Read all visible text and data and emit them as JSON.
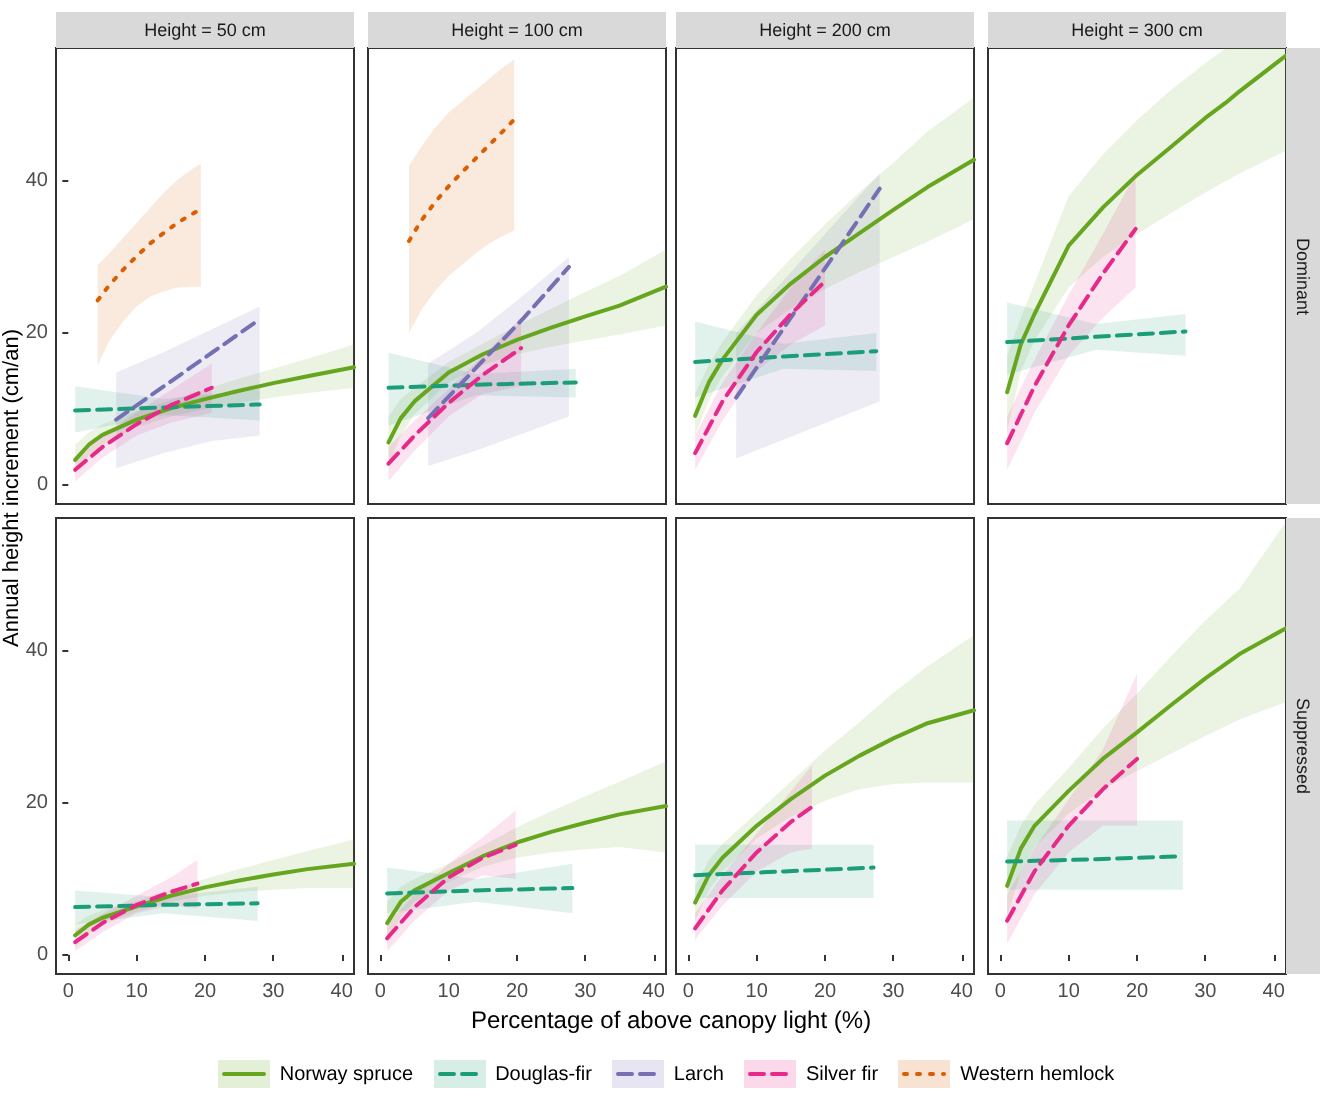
{
  "chart_data": [
    {
      "type": "line",
      "title": "Height = 50 cm",
      "legend": "bottom",
      "tick_labels": "y",
      "marker": "none",
      "grid": false,
      "xlim": [
        -1.8,
        41.8
      ],
      "ylim": [
        -2.5,
        57.5
      ],
      "xticks": [
        0,
        10,
        20,
        30,
        40
      ],
      "yticks": [
        0,
        20,
        40
      ],
      "series": [
        {
          "name": "Norway spruce",
          "color": "#66a61e",
          "line_style": "solid",
          "x": [
            1,
            3,
            5,
            10,
            15,
            20,
            25,
            30,
            35,
            41.8
          ],
          "values": [
            3.3,
            5.3,
            6.6,
            8.6,
            10.1,
            11.3,
            12.4,
            13.4,
            14.3,
            15.5
          ],
          "lower": [
            1.5,
            3.8,
            5.3,
            7.6,
            9.0,
            10.0,
            10.8,
            11.5,
            12.1,
            12.8
          ],
          "upper": [
            5.3,
            6.9,
            8.0,
            9.7,
            11.2,
            12.6,
            14.0,
            15.3,
            16.6,
            18.5
          ]
        },
        {
          "name": "Douglas-fir",
          "color": "#1b9e77",
          "line_style": "dashed",
          "x": [
            1,
            14,
            28
          ],
          "values": [
            9.8,
            10.2,
            10.6
          ],
          "lower": [
            6.9,
            9.2,
            8.5
          ],
          "upper": [
            13,
            11.3,
            12.6
          ]
        },
        {
          "name": "Larch",
          "color": "#7570b3",
          "line_style": "dashed",
          "x": [
            7,
            14,
            21,
            28
          ],
          "values": [
            8.6,
            13,
            17.4,
            21.8
          ],
          "lower": [
            2.2,
            4.2,
            5.8,
            6.5
          ],
          "upper": [
            14.8,
            17.5,
            20.5,
            23.5
          ]
        },
        {
          "name": "Silver fir",
          "color": "#e7298a",
          "line_style": "dashed",
          "x": [
            1,
            5,
            10,
            15,
            21
          ],
          "values": [
            2.0,
            5.0,
            8.0,
            10.5,
            12.8
          ],
          "lower": [
            0.5,
            3.6,
            6.5,
            8.2,
            9.5
          ],
          "upper": [
            3.6,
            6.4,
            9.6,
            12.5,
            16
          ]
        },
        {
          "name": "Western hemlock",
          "color": "#d95f02",
          "line_style": "dotted",
          "x": [
            4.3,
            6,
            8,
            10,
            12,
            14,
            16,
            18,
            19.4
          ],
          "values": [
            24.3,
            26.3,
            28.3,
            30.1,
            31.8,
            33.2,
            34.5,
            35.6,
            36.3
          ],
          "lower": [
            15.7,
            19,
            21.5,
            23.5,
            24.8,
            25.5,
            26,
            26.1,
            26.1
          ],
          "upper": [
            28.9,
            30.5,
            32.5,
            34.5,
            36.5,
            38.5,
            40.2,
            41.5,
            42.3
          ]
        }
      ]
    },
    {
      "type": "line",
      "title": "Height = 100 cm",
      "tick_labels": false,
      "marker": "none",
      "grid": false,
      "xlim": [
        -1.8,
        41.8
      ],
      "ylim": [
        -2.5,
        57.5
      ],
      "xticks": [
        0,
        10,
        20,
        30,
        40
      ],
      "yticks": [
        0,
        20,
        40
      ],
      "series": [
        {
          "name": "Norway spruce",
          "color": "#66a61e",
          "line_style": "solid",
          "x": [
            1.2,
            3,
            5,
            10,
            15,
            20,
            25,
            30,
            35,
            41.8
          ],
          "values": [
            5.6,
            8.8,
            11,
            14.8,
            17.2,
            19.1,
            20.7,
            22.2,
            23.6,
            26.1
          ],
          "lower": [
            2.5,
            6.5,
            9.3,
            13.5,
            15.8,
            17.2,
            18.2,
            19.0,
            19.8,
            21.0
          ],
          "upper": [
            9,
            11.3,
            12.8,
            16.2,
            18.6,
            21,
            23.2,
            25.4,
            27.5,
            31
          ]
        },
        {
          "name": "Douglas-fir",
          "color": "#1b9e77",
          "line_style": "dashed",
          "x": [
            1.2,
            14,
            28.6
          ],
          "values": [
            12.8,
            13.2,
            13.5
          ],
          "lower": [
            7.8,
            11.8,
            11.5
          ],
          "upper": [
            17.4,
            14.6,
            15.3
          ]
        },
        {
          "name": "Larch",
          "color": "#7570b3",
          "line_style": "dashed",
          "x": [
            7,
            14,
            21,
            27.6
          ],
          "values": [
            8.8,
            15.4,
            22,
            28.7
          ],
          "lower": [
            2.5,
            4.5,
            6.8,
            9
          ],
          "upper": [
            16,
            20,
            25,
            30
          ]
        },
        {
          "name": "Silver fir",
          "color": "#e7298a",
          "line_style": "dashed",
          "x": [
            1.2,
            5,
            10,
            15,
            20.6
          ],
          "values": [
            2.8,
            6.5,
            10.8,
            14.5,
            18
          ],
          "lower": [
            0.5,
            4.5,
            9,
            12,
            13
          ],
          "upper": [
            5,
            8.5,
            12.6,
            17,
            22
          ]
        },
        {
          "name": "Western hemlock",
          "color": "#d95f02",
          "line_style": "dotted",
          "x": [
            4.2,
            6,
            8,
            10,
            12,
            14,
            16,
            18,
            19.6
          ],
          "values": [
            32.1,
            34.8,
            37.2,
            39.3,
            41.2,
            43,
            44.8,
            46.6,
            48.1
          ],
          "lower": [
            20,
            23,
            25.5,
            27.5,
            29,
            30.5,
            31.8,
            32.8,
            33.5
          ],
          "upper": [
            42,
            44.5,
            47,
            49,
            50.5,
            52,
            53.5,
            55,
            56
          ]
        }
      ]
    },
    {
      "type": "line",
      "title": "Height = 200 cm",
      "tick_labels": false,
      "marker": "none",
      "grid": false,
      "xlim": [
        -1.8,
        41.8
      ],
      "ylim": [
        -2.5,
        57.5
      ],
      "xticks": [
        0,
        10,
        20,
        30,
        40
      ],
      "yticks": [
        0,
        20,
        40
      ],
      "series": [
        {
          "name": "Norway spruce",
          "color": "#66a61e",
          "line_style": "solid",
          "x": [
            1,
            3,
            5,
            10,
            15,
            20,
            25,
            30,
            35,
            41.8
          ],
          "values": [
            9.1,
            13.5,
            16.5,
            22.4,
            26.5,
            30,
            33.1,
            36.2,
            39.2,
            42.8
          ],
          "lower": [
            6.5,
            11.2,
            14.3,
            20,
            23.2,
            25.8,
            28,
            30,
            32,
            35
          ],
          "upper": [
            12,
            15.8,
            18.8,
            25,
            29.8,
            34.3,
            38.5,
            42.4,
            46.5,
            51
          ]
        },
        {
          "name": "Douglas-fir",
          "color": "#1b9e77",
          "line_style": "dashed",
          "x": [
            1,
            14,
            27.5
          ],
          "values": [
            16.2,
            16.9,
            17.6
          ],
          "lower": [
            11.5,
            15.3,
            15
          ],
          "upper": [
            21.5,
            18.6,
            20
          ]
        },
        {
          "name": "Larch",
          "color": "#7570b3",
          "line_style": "dashed",
          "x": [
            7,
            14,
            21,
            28
          ],
          "values": [
            11.5,
            20.7,
            29.8,
            39
          ],
          "lower": [
            3.5,
            6,
            8.5,
            11
          ],
          "upper": [
            20,
            27,
            34,
            41
          ]
        },
        {
          "name": "Silver fir",
          "color": "#e7298a",
          "line_style": "dashed",
          "x": [
            1,
            5,
            10,
            15,
            20
          ],
          "values": [
            4.2,
            11,
            17.5,
            22.5,
            26.8
          ],
          "lower": [
            2,
            8.5,
            15,
            18.5,
            21
          ],
          "upper": [
            6.5,
            13.5,
            20,
            26,
            31
          ]
        }
      ]
    },
    {
      "type": "line",
      "title": "Height = 300 cm",
      "y2label": "Dominant",
      "tick_labels": false,
      "marker": "none",
      "grid": false,
      "xlim": [
        -1.8,
        41.8
      ],
      "ylim": [
        -2.5,
        57.5
      ],
      "xticks": [
        0,
        10,
        20,
        30,
        40
      ],
      "yticks": [
        0,
        20,
        40
      ],
      "series": [
        {
          "name": "Norway spruce",
          "color": "#66a61e",
          "line_style": "solid",
          "x": [
            1,
            3,
            5,
            10,
            15,
            20,
            25,
            30,
            33,
            35,
            41.8
          ],
          "values": [
            12.2,
            18.5,
            22.5,
            31.5,
            36.5,
            40.8,
            44.5,
            48.3,
            50.3,
            51.8,
            56.5
          ],
          "lower": [
            7,
            15,
            19,
            26,
            30,
            33,
            35.8,
            38.5,
            40,
            41,
            44
          ],
          "upper": [
            17,
            22,
            26.5,
            38,
            43.5,
            48,
            52,
            55.5,
            57.5,
            57.5,
            57.5
          ]
        },
        {
          "name": "Douglas-fir",
          "color": "#1b9e77",
          "line_style": "dashed",
          "x": [
            1,
            14,
            27.1
          ],
          "values": [
            18.8,
            19.5,
            20.2
          ],
          "lower": [
            14.5,
            17.8,
            17
          ],
          "upper": [
            24,
            21.2,
            22.5
          ]
        },
        {
          "name": "Silver fir",
          "color": "#e7298a",
          "line_style": "dashed",
          "x": [
            1,
            5,
            10,
            15,
            19.8
          ],
          "values": [
            5.5,
            13,
            21,
            27.8,
            33.7
          ],
          "lower": [
            2,
            9.5,
            17,
            22,
            26
          ],
          "upper": [
            9,
            16.5,
            25,
            33,
            41
          ]
        }
      ]
    },
    {
      "type": "line",
      "xlabel": "Percentage of above canopy light (%)",
      "ylabel": "Annual height increment (cm/an)",
      "marker": "none",
      "grid": false,
      "xlim": [
        -1.8,
        41.8
      ],
      "ylim": [
        -2.5,
        57.5
      ],
      "xticks": [
        0,
        10,
        20,
        30,
        40
      ],
      "yticks": [
        0,
        20,
        40
      ],
      "series": [
        {
          "name": "Norway spruce",
          "color": "#66a61e",
          "line_style": "solid",
          "x": [
            1,
            3,
            5,
            10,
            15,
            20,
            25,
            30,
            35,
            41.8
          ],
          "values": [
            2.6,
            4,
            4.9,
            6.4,
            7.8,
            8.9,
            9.8,
            10.6,
            11.3,
            12
          ],
          "lower": [
            1,
            2.8,
            3.9,
            5.7,
            7,
            7.8,
            8.3,
            8.6,
            8.8,
            8.8
          ],
          "upper": [
            4,
            5.2,
            5.9,
            7.1,
            8.6,
            10,
            11.3,
            12.5,
            13.7,
            15.2
          ]
        },
        {
          "name": "Douglas-fir",
          "color": "#1b9e77",
          "line_style": "dashed",
          "x": [
            1,
            14,
            27.7
          ],
          "values": [
            6.3,
            6.6,
            6.8
          ],
          "lower": [
            4,
            5.5,
            4.5
          ],
          "upper": [
            8.5,
            7.6,
            9
          ]
        },
        {
          "name": "Silver fir",
          "color": "#e7298a",
          "line_style": "dashed",
          "x": [
            1,
            5,
            10,
            15,
            18.9
          ],
          "values": [
            1.7,
            4.2,
            6.6,
            8.3,
            9.4
          ],
          "lower": [
            0.5,
            3,
            5.5,
            6.5,
            6.2
          ],
          "upper": [
            3.3,
            5.4,
            7.8,
            10.2,
            12.5
          ]
        }
      ]
    },
    {
      "type": "line",
      "tick_labels": "x",
      "marker": "none",
      "grid": false,
      "xlim": [
        -1.8,
        41.8
      ],
      "ylim": [
        -2.5,
        57.5
      ],
      "xticks": [
        0,
        10,
        20,
        30,
        40
      ],
      "yticks": [
        0,
        20,
        40
      ],
      "series": [
        {
          "name": "Norway spruce",
          "color": "#66a61e",
          "line_style": "solid",
          "x": [
            1,
            3,
            5,
            10,
            15,
            20,
            25,
            30,
            35,
            41.8
          ],
          "values": [
            4.2,
            7,
            8.5,
            10.8,
            13,
            14.8,
            16.2,
            17.4,
            18.5,
            19.6
          ],
          "lower": [
            1.5,
            5,
            7,
            9.6,
            11.6,
            12.8,
            13.5,
            13.9,
            14.2,
            13.5
          ],
          "upper": [
            7,
            9,
            10,
            12,
            14.4,
            16.8,
            18.9,
            20.9,
            22.8,
            25.5
          ]
        },
        {
          "name": "Douglas-fir",
          "color": "#1b9e77",
          "line_style": "dashed",
          "x": [
            1,
            14,
            28.1
          ],
          "values": [
            8.1,
            8.5,
            8.8
          ],
          "lower": [
            5.5,
            7,
            5.5
          ],
          "upper": [
            11.5,
            10,
            12
          ]
        },
        {
          "name": "Silver fir",
          "color": "#e7298a",
          "line_style": "dashed",
          "x": [
            1,
            5,
            10,
            15,
            19.8
          ],
          "values": [
            2.2,
            6.3,
            10.2,
            12.8,
            14.5
          ],
          "lower": [
            0.5,
            4.5,
            8.5,
            10.5,
            10
          ],
          "upper": [
            4,
            8,
            12,
            15.5,
            19
          ]
        }
      ]
    },
    {
      "type": "line",
      "tick_labels": "x",
      "marker": "none",
      "grid": false,
      "xlim": [
        -1.8,
        41.8
      ],
      "ylim": [
        -2.5,
        57.5
      ],
      "xticks": [
        0,
        10,
        20,
        30,
        40
      ],
      "yticks": [
        0,
        20,
        40
      ],
      "series": [
        {
          "name": "Norway spruce",
          "color": "#66a61e",
          "line_style": "solid",
          "x": [
            1,
            3,
            5,
            10,
            15,
            20,
            25,
            30,
            35,
            41.8
          ],
          "values": [
            6.9,
            10.5,
            12.8,
            17,
            20.5,
            23.6,
            26.2,
            28.5,
            30.5,
            32.2
          ],
          "lower": [
            4.5,
            8.5,
            11,
            15.3,
            18.2,
            20.3,
            21.8,
            22.5,
            22.7,
            22.7
          ],
          "upper": [
            9,
            12.5,
            14.6,
            18.7,
            22.8,
            26.9,
            30.6,
            34.5,
            38,
            42.1
          ]
        },
        {
          "name": "Douglas-fir",
          "color": "#1b9e77",
          "line_style": "dashed",
          "x": [
            1,
            14,
            27.1
          ],
          "values": [
            10.5,
            11,
            11.5
          ],
          "lower": [
            7.5,
            7.5,
            7.5
          ],
          "upper": [
            14.5,
            14.5,
            14.5
          ]
        },
        {
          "name": "Silver fir",
          "color": "#e7298a",
          "line_style": "dashed",
          "x": [
            1,
            5,
            10,
            15,
            18.1
          ],
          "values": [
            3.5,
            8.5,
            13.5,
            17.5,
            19.5
          ],
          "lower": [
            2,
            6.5,
            11,
            13.5,
            14
          ],
          "upper": [
            5.5,
            10.5,
            16,
            21.5,
            25
          ]
        }
      ]
    },
    {
      "type": "line",
      "y2label": "Suppressed",
      "tick_labels": "x",
      "marker": "none",
      "grid": false,
      "xlim": [
        -1.8,
        41.8
      ],
      "ylim": [
        -2.5,
        57.5
      ],
      "xticks": [
        0,
        10,
        20,
        30,
        40
      ],
      "yticks": [
        0,
        20,
        40
      ],
      "series": [
        {
          "name": "Norway spruce",
          "color": "#66a61e",
          "line_style": "solid",
          "x": [
            1,
            3,
            5,
            10,
            15,
            20,
            25,
            30,
            35,
            41.8
          ],
          "values": [
            9.1,
            14,
            17,
            21.6,
            25.8,
            29.3,
            32.9,
            36.4,
            39.6,
            43
          ],
          "lower": [
            5,
            11,
            14.2,
            18.6,
            21.8,
            24.2,
            26.5,
            28.8,
            31,
            33.3
          ],
          "upper": [
            13,
            17,
            19.8,
            24.6,
            29.8,
            34.4,
            39.3,
            44,
            48.2,
            57
          ]
        },
        {
          "name": "Douglas-fir",
          "color": "#1b9e77",
          "line_style": "dashed",
          "x": [
            1,
            14,
            26.7
          ],
          "values": [
            12.3,
            12.6,
            13
          ],
          "lower": [
            8.6,
            8.6,
            8.6
          ],
          "upper": [
            17.7,
            17.7,
            17.7
          ]
        },
        {
          "name": "Silver fir",
          "color": "#e7298a",
          "line_style": "dashed",
          "x": [
            1,
            5,
            10,
            15,
            20
          ],
          "values": [
            4.5,
            11,
            17,
            21.8,
            25.8
          ],
          "lower": [
            1.5,
            8,
            13.5,
            17,
            17
          ],
          "upper": [
            8,
            14,
            20.5,
            27,
            37
          ]
        }
      ]
    }
  ]
}
